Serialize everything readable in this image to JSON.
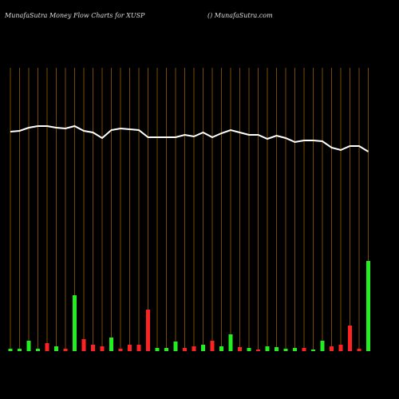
{
  "chart_data": {
    "type": "bar",
    "title": "MunafaSutra  Money Flow  Charts for XUSP",
    "subtitle": "() MunafaSutra.com",
    "categories": [
      null,
      null,
      null,
      null,
      null,
      null,
      null,
      null,
      null,
      null,
      null,
      null,
      null,
      null,
      null,
      null,
      null,
      null,
      null,
      null,
      null,
      null,
      null,
      null,
      null,
      null,
      null,
      null,
      null,
      null,
      null,
      null,
      null,
      null,
      null,
      null,
      null,
      null,
      null,
      null
    ],
    "series": [
      {
        "type": "bar",
        "values": [
          3,
          3,
          13,
          3,
          10,
          6,
          3,
          70,
          15,
          8,
          6,
          17,
          3,
          8,
          8,
          52,
          4,
          4,
          12,
          4,
          6,
          8,
          13,
          6,
          21,
          5,
          4,
          2,
          6,
          5,
          3,
          4,
          4,
          2,
          13,
          6,
          8,
          32,
          3,
          113
        ],
        "colors": [
          "#22ee22",
          "#22ee22",
          "#22ee22",
          "#22ee22",
          "#ff2222",
          "#22ee22",
          "#ff2222",
          "#22ee22",
          "#ff2222",
          "#ff2222",
          "#ff2222",
          "#22ee22",
          "#ff2222",
          "#ff2222",
          "#ff2222",
          "#ff2222",
          "#22ee22",
          "#22ee22",
          "#22ee22",
          "#ff2222",
          "#ff2222",
          "#22ee22",
          "#ff2222",
          "#22ee22",
          "#22ee22",
          "#ff2222",
          "#22ee22",
          "#ff2222",
          "#22ee22",
          "#22ee22",
          "#22ee22",
          "#22ee22",
          "#ff2222",
          "#22ee22",
          "#22ee22",
          "#ff2222",
          "#ff2222",
          "#ff2222",
          "#ff2222",
          "#22ee22"
        ]
      },
      {
        "type": "line",
        "color": "#ffffff",
        "values": [
          275,
          276,
          280,
          282,
          282,
          280,
          279,
          282,
          276,
          274,
          267,
          277,
          279,
          278,
          277,
          268,
          268,
          268,
          268,
          271,
          269,
          274,
          268,
          273,
          277,
          274,
          271,
          271,
          266,
          270,
          267,
          262,
          264,
          264,
          263,
          255,
          252,
          257,
          257,
          250
        ]
      }
    ],
    "ylim": [
      0,
      380
    ],
    "grid": true,
    "grid_color": "#7a4a00",
    "background": "#000000"
  }
}
